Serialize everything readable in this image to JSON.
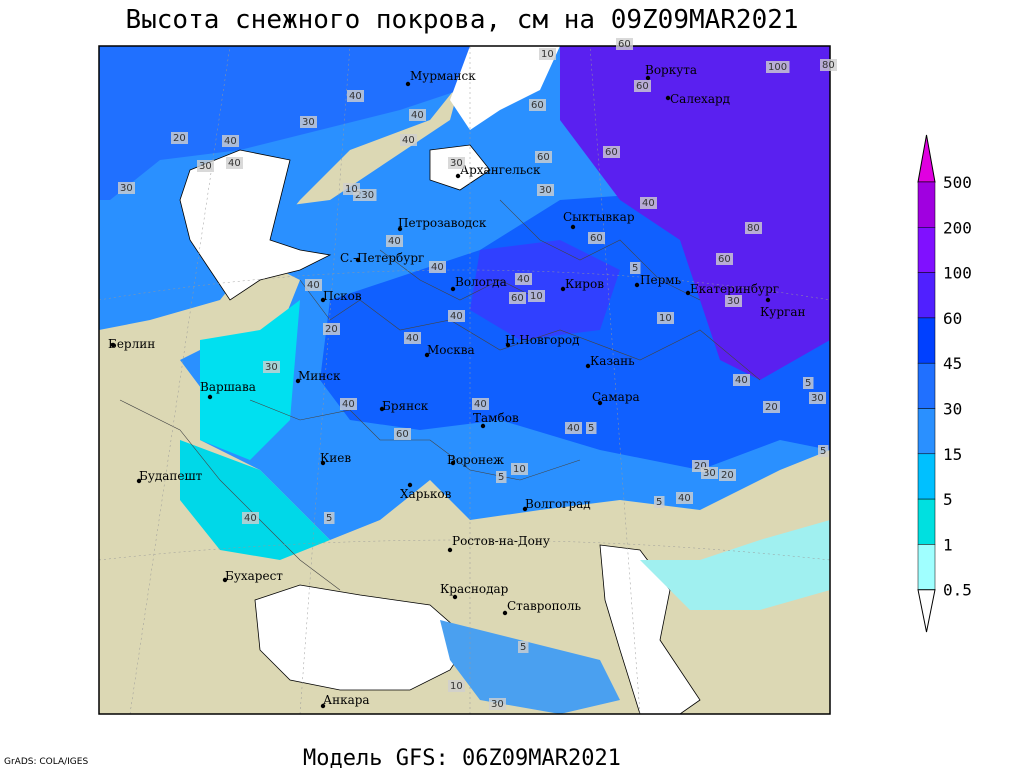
{
  "header": {
    "title": "Высота снежного покрова, см на 09Z09MAR2021"
  },
  "footer": {
    "model": "Модель GFS: 06Z09MAR2021",
    "credit": "GrADS: COLA/IGES"
  },
  "legend": {
    "levels": [
      "500",
      "200",
      "100",
      "60",
      "45",
      "30",
      "15",
      "5",
      "1",
      "0.5"
    ]
  },
  "cities": [
    "Мурманск",
    "Воркута",
    "Салехард",
    "Архангельск",
    "Петрозаводск",
    "Сыктывкар",
    "С.-Петербург",
    "Вологда",
    "Киров",
    "Пермь",
    "Екатеринбург",
    "Курган",
    "Псков",
    "Берлин",
    "Н.Новгород",
    "Казань",
    "Москва",
    "Минск",
    "Варшава",
    "Самара",
    "Брянск",
    "Тамбов",
    "Киев",
    "Воронеж",
    "Будапешт",
    "Харьков",
    "Волгоград",
    "Ростов-на-Дону",
    "Бухарест",
    "Краснодар",
    "Ставрополь",
    "Анкара"
  ],
  "contour_labels": [
    "10",
    "60",
    "100",
    "80",
    "60",
    "40",
    "60",
    "40",
    "40",
    "30",
    "20",
    "30",
    "40",
    "30",
    "40",
    "60",
    "60",
    "230",
    "30",
    "10",
    "30",
    "40",
    "40",
    "60",
    "40",
    "40",
    "60",
    "10",
    "5",
    "60",
    "80",
    "40",
    "20",
    "40",
    "40",
    "10",
    "30",
    "30",
    "40",
    "40",
    "60",
    "40",
    "40",
    "5",
    "5",
    "10",
    "5",
    "40",
    "20",
    "30",
    "20",
    "5",
    "5",
    "10",
    "5",
    "30",
    "20",
    "40",
    "5",
    "30"
  ]
}
